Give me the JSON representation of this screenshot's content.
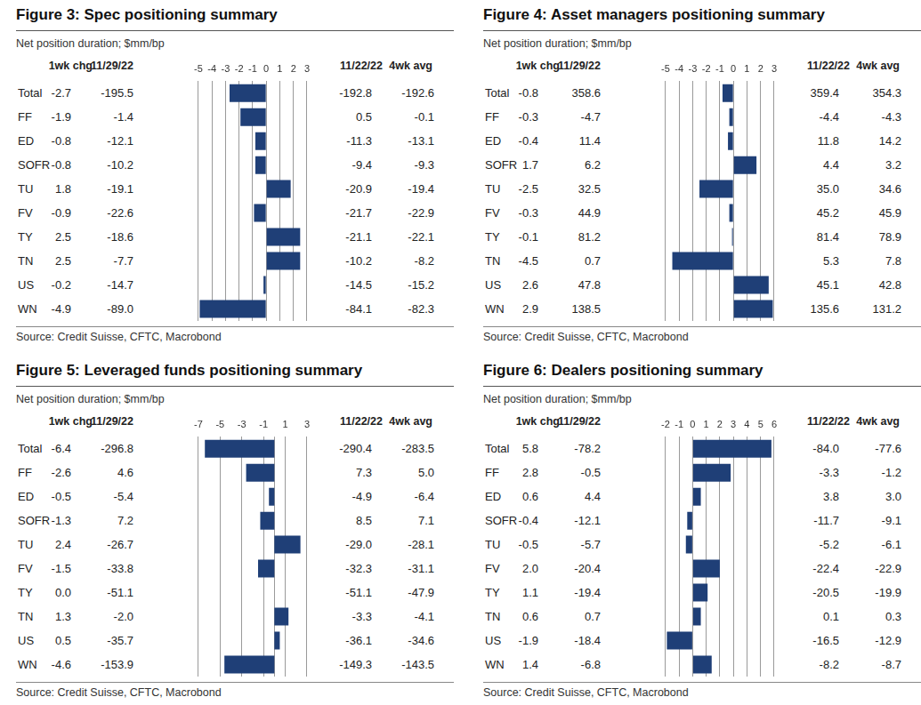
{
  "chart_data": [
    {
      "type": "bar",
      "orientation": "horizontal",
      "title": "Figure 3: Spec positioning summary",
      "subtitle": "Net position duration; $mm/bp",
      "source": "Source: Credit Suisse, CFTC, Macrobond",
      "categories": [
        "Total",
        "FF",
        "ED",
        "SOFR",
        "TU",
        "FV",
        "TY",
        "TN",
        "US",
        "WN"
      ],
      "series": [
        {
          "name": "1wk chg",
          "color": "#1f3f77",
          "values": [
            -2.7,
            -1.9,
            -0.8,
            -0.8,
            1.8,
            -0.9,
            2.5,
            2.5,
            -0.2,
            -4.9
          ]
        }
      ],
      "columns": [
        {
          "name": "11/29/22",
          "values": [
            -195.5,
            -1.4,
            -12.1,
            -10.2,
            -19.1,
            -22.6,
            -18.6,
            -7.7,
            -14.7,
            -89.0
          ]
        },
        {
          "name": "11/22/22",
          "values": [
            -192.8,
            0.5,
            -11.3,
            -9.4,
            -20.9,
            -21.7,
            -21.1,
            -10.2,
            -14.5,
            -84.1
          ]
        },
        {
          "name": "4wk avg",
          "values": [
            -192.6,
            -0.1,
            -13.1,
            -9.3,
            -19.4,
            -22.9,
            -22.1,
            -8.2,
            -15.2,
            -82.3
          ]
        }
      ],
      "xlim": [
        -5,
        3
      ],
      "xticks": [
        -5,
        -4,
        -3,
        -2,
        -1,
        0,
        1,
        2,
        3
      ],
      "grid": true
    },
    {
      "type": "bar",
      "orientation": "horizontal",
      "title": "Figure 4: Asset managers positioning summary",
      "subtitle": "Net position duration; $mm/bp",
      "source": "Source: Credit Suisse, CFTC, Macrobond",
      "categories": [
        "Total",
        "FF",
        "ED",
        "SOFR",
        "TU",
        "FV",
        "TY",
        "TN",
        "US",
        "WN"
      ],
      "series": [
        {
          "name": "1wk chg",
          "color": "#1f3f77",
          "values": [
            -0.8,
            -0.3,
            -0.4,
            1.7,
            -2.5,
            -0.3,
            -0.1,
            -4.5,
            2.6,
            2.9
          ]
        }
      ],
      "columns": [
        {
          "name": "11/29/22",
          "values": [
            358.6,
            -4.7,
            11.4,
            6.2,
            32.5,
            44.9,
            81.2,
            0.7,
            47.8,
            138.5
          ]
        },
        {
          "name": "11/22/22",
          "values": [
            359.4,
            -4.4,
            11.8,
            4.4,
            35.0,
            45.2,
            81.4,
            5.3,
            45.1,
            135.6
          ]
        },
        {
          "name": "4wk avg",
          "values": [
            354.3,
            -4.3,
            14.2,
            3.2,
            34.6,
            45.9,
            78.9,
            7.8,
            42.8,
            131.2
          ]
        }
      ],
      "xlim": [
        -5,
        3
      ],
      "xticks": [
        -5,
        -4,
        -3,
        -2,
        -1,
        0,
        1,
        2,
        3
      ],
      "grid": true
    },
    {
      "type": "bar",
      "orientation": "horizontal",
      "title": "Figure 5: Leveraged funds positioning summary",
      "subtitle": "Net position duration; $mm/bp",
      "source": "Source: Credit Suisse, CFTC, Macrobond",
      "categories": [
        "Total",
        "FF",
        "ED",
        "SOFR",
        "TU",
        "FV",
        "TY",
        "TN",
        "US",
        "WN"
      ],
      "series": [
        {
          "name": "1wk chg",
          "color": "#1f3f77",
          "values": [
            -6.4,
            -2.6,
            -0.5,
            -1.3,
            2.4,
            -1.5,
            0.0,
            1.3,
            0.5,
            -4.6
          ]
        }
      ],
      "columns": [
        {
          "name": "11/29/22",
          "values": [
            -296.8,
            4.6,
            -5.4,
            7.2,
            -26.7,
            -33.8,
            -51.1,
            -2.0,
            -35.7,
            -153.9
          ]
        },
        {
          "name": "11/22/22",
          "values": [
            -290.4,
            7.3,
            -4.9,
            8.5,
            -29.0,
            -32.3,
            -51.1,
            -3.3,
            -36.1,
            -149.3
          ]
        },
        {
          "name": "4wk avg",
          "values": [
            -283.5,
            5.0,
            -6.4,
            7.1,
            -28.1,
            -31.1,
            -47.9,
            -4.1,
            -34.6,
            -143.5
          ]
        }
      ],
      "xlim": [
        -7,
        3
      ],
      "xticks": [
        -7,
        -5,
        -3,
        -1,
        1,
        3
      ],
      "grid": true
    },
    {
      "type": "bar",
      "orientation": "horizontal",
      "title": "Figure 6: Dealers positioning summary",
      "subtitle": "Net position duration; $mm/bp",
      "source": "Source: Credit Suisse, CFTC, Macrobond",
      "categories": [
        "Total",
        "FF",
        "ED",
        "SOFR",
        "TU",
        "FV",
        "TY",
        "TN",
        "US",
        "WN"
      ],
      "series": [
        {
          "name": "1wk chg",
          "color": "#1f3f77",
          "values": [
            5.8,
            2.8,
            0.6,
            -0.4,
            -0.5,
            2.0,
            1.1,
            0.6,
            -1.9,
            1.4
          ]
        }
      ],
      "columns": [
        {
          "name": "11/29/22",
          "values": [
            -78.2,
            -0.5,
            4.4,
            -12.1,
            -5.7,
            -20.4,
            -19.4,
            0.7,
            -18.4,
            -6.8
          ]
        },
        {
          "name": "11/22/22",
          "values": [
            -84.0,
            -3.3,
            3.8,
            -11.7,
            -5.2,
            -22.4,
            -20.5,
            0.1,
            -16.5,
            -8.2
          ]
        },
        {
          "name": "4wk avg",
          "values": [
            -77.6,
            -1.2,
            3.0,
            -9.1,
            -6.1,
            -22.9,
            -19.9,
            0.3,
            -12.9,
            -8.7
          ]
        }
      ],
      "xlim": [
        -2,
        6
      ],
      "xticks": [
        -2,
        -1,
        0,
        1,
        2,
        3,
        4,
        5,
        6
      ],
      "grid": true
    }
  ]
}
